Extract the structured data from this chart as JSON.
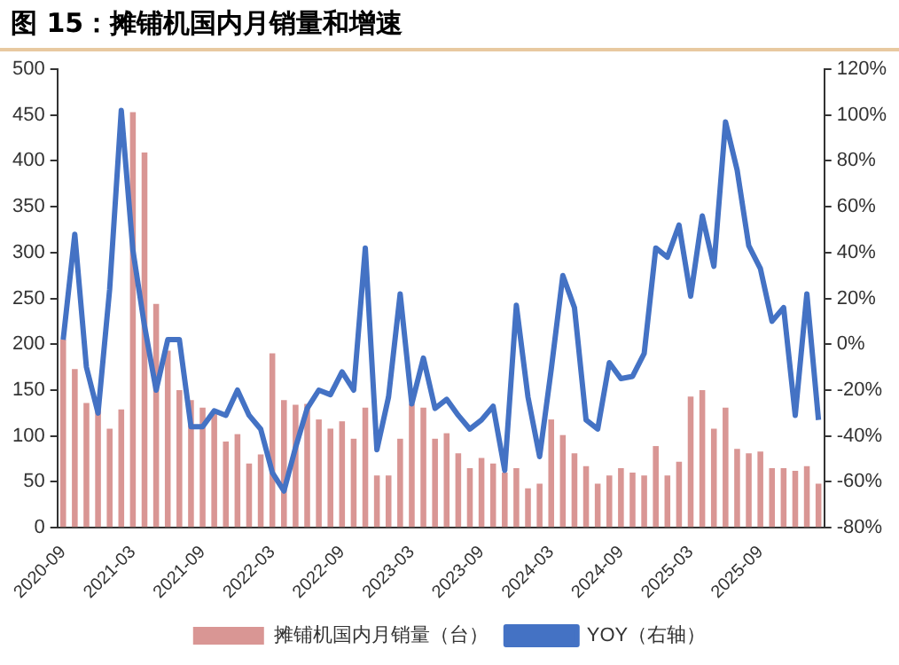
{
  "chart_data": {
    "type": "bar",
    "title": "图 15：摊铺机国内月销量和增速",
    "categories": [
      "2020-09",
      null,
      null,
      null,
      null,
      null,
      "2021-03",
      null,
      null,
      null,
      null,
      null,
      "2021-09",
      null,
      null,
      null,
      null,
      null,
      "2022-03",
      null,
      null,
      null,
      null,
      null,
      "2022-09",
      null,
      null,
      null,
      null,
      null,
      "2023-03",
      null,
      null,
      null,
      null,
      null,
      "2023-09",
      null,
      null,
      null,
      null,
      null,
      "2024-03",
      null,
      null,
      null,
      null,
      null,
      "2024-09",
      null,
      null,
      null,
      null,
      null,
      "2025-03",
      null,
      null,
      null,
      null,
      null,
      "2025-09",
      null,
      null,
      null,
      null,
      null
    ],
    "series": [
      {
        "name": "摊铺机国内月销量（台）",
        "color": "#d99694",
        "values": [
          205,
          173,
          136,
          128,
          108,
          129,
          453,
          409,
          244,
          193,
          150,
          139,
          131,
          124,
          94,
          102,
          70,
          80,
          190,
          139,
          134,
          135,
          118,
          108,
          116,
          97,
          131,
          57,
          57,
          97,
          135,
          131,
          97,
          103,
          81,
          65,
          76,
          70,
          60,
          65,
          43,
          48,
          118,
          101,
          81,
          67,
          48,
          57,
          65,
          60,
          57,
          89,
          57,
          72,
          143,
          150,
          108,
          131,
          86,
          81,
          83,
          65,
          65,
          62,
          67,
          48
        ]
      },
      {
        "name": "YOY（右轴）",
        "type": "line",
        "axis": "y2",
        "color": "#4472c4",
        "values": [
          2,
          48,
          -10,
          -30,
          24,
          102,
          41,
          8,
          -20,
          2,
          2,
          -36,
          -36,
          -29,
          -31,
          -20,
          -31,
          -37,
          -56,
          -64,
          -45,
          -28,
          -20,
          -22,
          -12,
          -20,
          42,
          -46,
          -23,
          22,
          -26,
          -6,
          -28,
          -24,
          -31,
          -37,
          -33,
          -27,
          -55,
          17,
          -23,
          -49,
          -11,
          30,
          16,
          -33,
          -37,
          -8,
          -15,
          -14,
          -4,
          42,
          38,
          52,
          21,
          56,
          34,
          97,
          76,
          43,
          33,
          10,
          16,
          -31,
          22,
          -33
        ]
      }
    ],
    "ylim": [
      0,
      500
    ],
    "yticks": [
      0,
      50,
      100,
      150,
      200,
      250,
      300,
      350,
      400,
      450,
      500
    ],
    "y2lim": [
      -80,
      120
    ],
    "y2ticks": [
      {
        "value": -80,
        "label": "-80%"
      },
      {
        "value": -60,
        "label": "-60%"
      },
      {
        "value": -40,
        "label": "-40%"
      },
      {
        "value": -20,
        "label": "-20%"
      },
      {
        "value": 0,
        "label": "0%"
      },
      {
        "value": 20,
        "label": "20%"
      },
      {
        "value": 40,
        "label": "40%"
      },
      {
        "value": 60,
        "label": "60%"
      },
      {
        "value": 80,
        "label": "80%"
      },
      {
        "value": 100,
        "label": "100%"
      },
      {
        "value": 120,
        "label": "120%"
      }
    ],
    "grid": false,
    "legend": "bottom"
  }
}
